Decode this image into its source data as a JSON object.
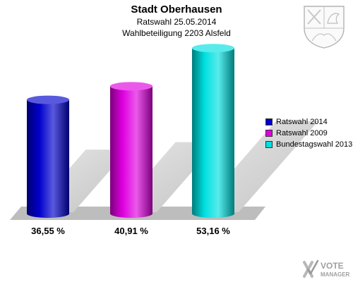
{
  "chart_data": {
    "type": "bar",
    "title": "Stadt Oberhausen",
    "subtitle_lines": [
      "Ratswahl 25.05.2014",
      "Wahlbeteiligung 2203 Alsfeld"
    ],
    "series": [
      {
        "name": "Ratswahl 2014",
        "value": 36.55,
        "label": "36,55 %",
        "color": "#0000cc"
      },
      {
        "name": "Ratswahl 2009",
        "value": 40.91,
        "label": "40,91 %",
        "color": "#e000e0"
      },
      {
        "name": "Bundestagswahl 2013",
        "value": 53.16,
        "label": "53,16 %",
        "color": "#00e0e0"
      }
    ],
    "ylim": [
      0,
      60
    ],
    "legend_position": "right"
  },
  "brand": {
    "line1": "VOTE",
    "line2": "MANAGER"
  },
  "icons": {
    "crest": "coat-of-arms-icon",
    "brand": "vote-manager-logo-icon"
  }
}
